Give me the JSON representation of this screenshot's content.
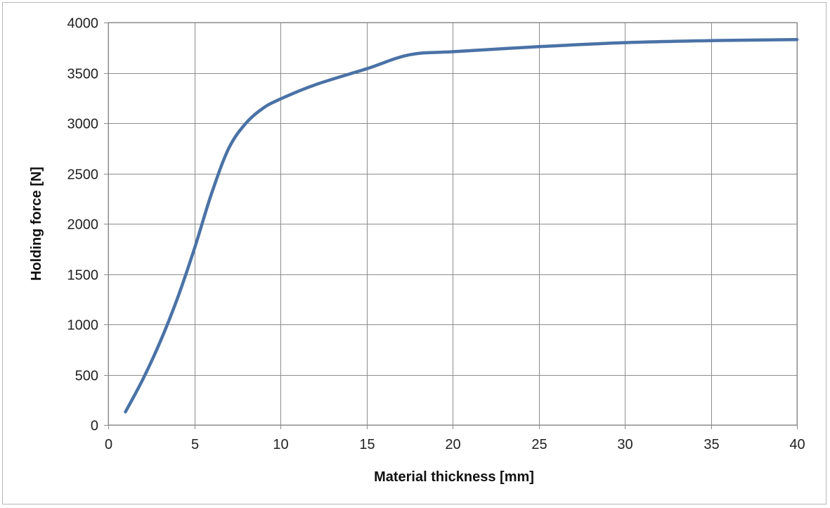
{
  "chart_data": {
    "type": "line",
    "title": "",
    "xlabel": "Material thickness  [mm]",
    "ylabel": "Holding force  [N]",
    "xlim": [
      0,
      40
    ],
    "ylim": [
      0,
      4000
    ],
    "xticks": [
      0,
      5,
      10,
      15,
      20,
      25,
      30,
      35,
      40
    ],
    "yticks": [
      0,
      500,
      1000,
      1500,
      2000,
      2500,
      3000,
      3500,
      4000
    ],
    "xtick_labels": [
      "0",
      "5",
      "10",
      "15",
      "20",
      "25",
      "30",
      "35",
      "40"
    ],
    "ytick_labels": [
      "0",
      "500",
      "1000",
      "1500",
      "2000",
      "2500",
      "3000",
      "3500",
      "4000"
    ],
    "grid": true,
    "legend": "none",
    "series": [
      {
        "color": "#4a72a6",
        "x": [
          1,
          2,
          3,
          4,
          5,
          6,
          7,
          8,
          9,
          10,
          12,
          15,
          17.5,
          20,
          25,
          30,
          35,
          40
        ],
        "y": [
          130,
          450,
          820,
          1250,
          1750,
          2300,
          2750,
          3000,
          3150,
          3240,
          3380,
          3540,
          3680,
          3710,
          3760,
          3800,
          3820,
          3830
        ]
      }
    ]
  }
}
